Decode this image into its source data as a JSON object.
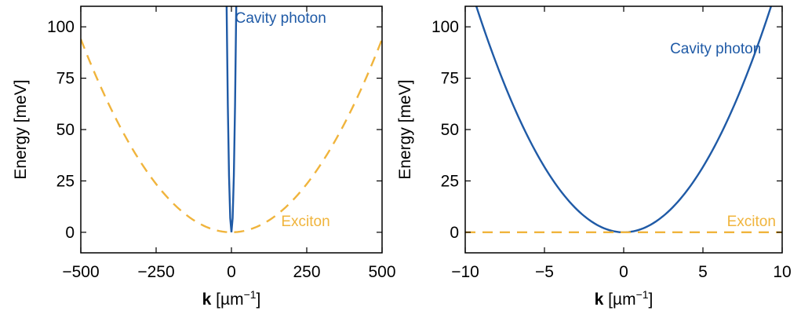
{
  "colors": {
    "cavity": "#1f5aa6",
    "exciton": "#f0b43c"
  },
  "chart_data": [
    {
      "type": "line",
      "xlim": [
        -500,
        500
      ],
      "ylim": [
        -10,
        110
      ],
      "xticks": [
        -500,
        -250,
        0,
        250,
        500
      ],
      "yticks": [
        0,
        25,
        50,
        75,
        100
      ],
      "xtick_labels": [
        "−500",
        "−250",
        "0",
        "250",
        "500"
      ],
      "ytick_labels": [
        "0",
        "25",
        "50",
        "75",
        "100"
      ],
      "xlabel_bold": "k",
      "xlabel_rest": " [µm",
      "xlabel_sup": "−1",
      "xlabel_close": "]",
      "ylabel": "Energy [meV]",
      "grid": false,
      "series": [
        {
          "name": "Cavity photon",
          "style": "solid",
          "x": [
            -16,
            -12,
            -8,
            -4,
            0,
            4,
            8,
            12,
            16
          ],
          "y": [
            110,
            62,
            27.5,
            6.9,
            0,
            6.9,
            27.5,
            62,
            110
          ]
        },
        {
          "name": "Exciton",
          "style": "dashed",
          "x": [
            -500,
            -400,
            -300,
            -200,
            -100,
            0,
            100,
            200,
            300,
            400,
            500
          ],
          "y": [
            94,
            60.2,
            33.8,
            15.0,
            3.8,
            0,
            3.8,
            15.0,
            33.8,
            60.2,
            94
          ]
        }
      ],
      "annotations": [
        {
          "text": "Cavity photon",
          "series": "Cavity photon",
          "x": 12,
          "y": 102
        },
        {
          "text": "Exciton",
          "series": "Exciton",
          "x": 165,
          "y": 3
        }
      ]
    },
    {
      "type": "line",
      "xlim": [
        -10,
        10
      ],
      "ylim": [
        -10,
        110
      ],
      "xticks": [
        -10,
        -5,
        0,
        5,
        10
      ],
      "yticks": [
        0,
        25,
        50,
        75,
        100
      ],
      "xtick_labels": [
        "−10",
        "−5",
        "0",
        "5",
        "10"
      ],
      "ytick_labels": [
        "0",
        "25",
        "50",
        "75",
        "100"
      ],
      "xlabel_bold": "k",
      "xlabel_rest": " [µm",
      "xlabel_sup": "−1",
      "xlabel_close": "]",
      "ylabel": "Energy [meV]",
      "grid": false,
      "series": [
        {
          "name": "Cavity photon",
          "style": "solid",
          "x": [
            -9.3,
            -8,
            -6,
            -4,
            -2,
            -1,
            0,
            1,
            2,
            4,
            6,
            8,
            9.3
          ],
          "y": [
            110,
            81.4,
            45.8,
            20.4,
            5.1,
            1.27,
            0,
            1.27,
            5.1,
            20.4,
            45.8,
            81.4,
            110
          ]
        },
        {
          "name": "Exciton",
          "style": "dashed",
          "x": [
            -10,
            10
          ],
          "y": [
            0,
            0
          ]
        }
      ],
      "annotations": [
        {
          "text": "Cavity photon",
          "series": "Cavity photon",
          "x": 5.8,
          "y": 87
        },
        {
          "text": "Exciton",
          "series": "Exciton",
          "x": 9.6,
          "y": 3
        }
      ]
    }
  ]
}
